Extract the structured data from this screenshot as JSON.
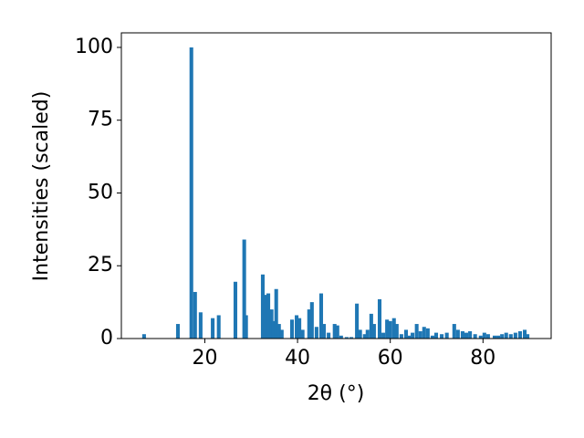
{
  "chart_data": {
    "type": "bar",
    "x_label": "2θ (°)",
    "y_label": "Intensities (scaled)",
    "color": "#1f77b4",
    "xlim": [
      2.0,
      94.7
    ],
    "ylim": [
      0,
      105
    ],
    "xticks": [
      20,
      40,
      60,
      80
    ],
    "yticks": [
      0,
      25,
      50,
      75,
      100
    ],
    "x": [
      6.9,
      14.2,
      17.1,
      17.9,
      19.1,
      21.7,
      23.0,
      26.6,
      28.5,
      28.9,
      32.5,
      33.3,
      33.7,
      34.4,
      34.8,
      35.4,
      36.0,
      36.6,
      38.8,
      39.8,
      40.4,
      41.1,
      42.5,
      43.1,
      44.1,
      45.1,
      45.7,
      46.7,
      48.0,
      48.6,
      49.4,
      50.6,
      51.6,
      52.8,
      53.5,
      54.5,
      55.1,
      55.9,
      56.5,
      57.7,
      58.5,
      59.3,
      60.0,
      60.8,
      61.4,
      62.4,
      63.4,
      64.0,
      64.8,
      65.7,
      66.5,
      67.3,
      68.1,
      69.1,
      69.9,
      71.1,
      72.2,
      73.8,
      74.6,
      75.6,
      76.4,
      77.2,
      78.3,
      79.5,
      80.3,
      81.1,
      82.5,
      83.3,
      84.1,
      85.0,
      86.0,
      87.0,
      88.0,
      89.0,
      89.6
    ],
    "values": [
      1.5,
      5,
      100,
      16,
      9,
      7,
      8,
      19.5,
      34,
      8,
      22,
      15,
      15.5,
      10,
      6,
      17,
      5,
      3,
      6.5,
      8,
      7,
      3,
      10,
      12.5,
      4,
      15.5,
      5,
      2,
      5,
      4.5,
      1,
      0.5,
      0.5,
      12,
      3,
      1.5,
      3,
      8.5,
      5,
      13.5,
      2,
      6.5,
      6,
      7,
      5,
      1.5,
      3,
      1,
      2,
      5,
      2.5,
      4,
      3.5,
      1,
      2,
      1.5,
      2,
      5,
      3,
      2.5,
      2,
      2.5,
      1.5,
      1,
      2,
      1.5,
      1,
      1,
      1.5,
      2,
      1.5,
      2,
      2.5,
      3,
      1.5
    ]
  }
}
